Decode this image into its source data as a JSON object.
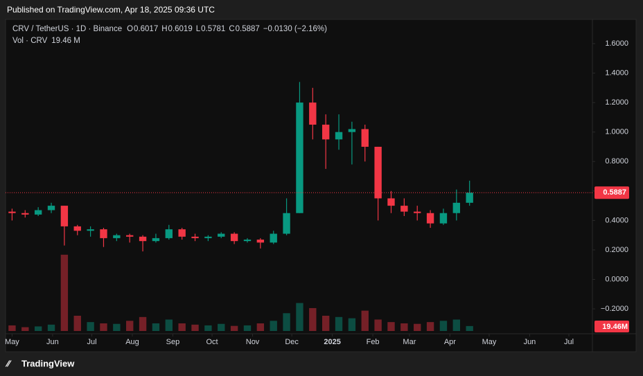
{
  "chart_data": {
    "type": "candlestick",
    "published": "Published on TradingView.com, Apr 18, 2025 09:36 UTC",
    "title": "CRV / TetherUS · 1D · Binance",
    "legend": {
      "open_label": "O",
      "open": 0.6017,
      "high_label": "H",
      "high": 0.6019,
      "low_label": "L",
      "low": 0.5781,
      "close_label": "C",
      "close": 0.5887,
      "change": "−0.0130 (−2.16%)"
    },
    "brand": "TradingView",
    "up_color": "#089981",
    "down_color": "#f23645",
    "x": [
      0,
      10,
      20,
      30,
      40,
      50,
      60,
      70,
      80,
      90,
      100,
      110,
      120,
      130,
      140,
      150,
      160,
      170,
      180,
      190,
      200,
      210,
      220,
      230,
      240,
      250,
      260,
      270,
      280,
      290,
      300,
      310,
      320,
      330,
      340,
      350
    ],
    "open": [
      0.46,
      0.45,
      0.44,
      0.47,
      0.5,
      0.36,
      0.33,
      0.34,
      0.28,
      0.3,
      0.29,
      0.26,
      0.28,
      0.34,
      0.29,
      0.28,
      0.29,
      0.31,
      0.26,
      0.27,
      0.25,
      0.31,
      0.45,
      1.2,
      1.05,
      0.95,
      1.0,
      1.02,
      0.9,
      0.55,
      0.5,
      0.46,
      0.45,
      0.38,
      0.45,
      0.52
    ],
    "high": [
      0.48,
      0.47,
      0.49,
      0.52,
      0.5,
      0.37,
      0.36,
      0.35,
      0.31,
      0.31,
      0.3,
      0.31,
      0.37,
      0.35,
      0.31,
      0.3,
      0.32,
      0.32,
      0.28,
      0.28,
      0.33,
      0.55,
      1.34,
      1.3,
      1.12,
      1.12,
      1.07,
      1.05,
      0.9,
      0.6,
      0.55,
      0.5,
      0.47,
      0.48,
      0.61,
      0.67
    ],
    "low": [
      0.4,
      0.42,
      0.43,
      0.45,
      0.23,
      0.3,
      0.29,
      0.22,
      0.26,
      0.25,
      0.19,
      0.25,
      0.27,
      0.27,
      0.26,
      0.26,
      0.28,
      0.24,
      0.25,
      0.21,
      0.24,
      0.3,
      0.45,
      0.95,
      0.75,
      0.88,
      0.78,
      0.8,
      0.4,
      0.45,
      0.43,
      0.4,
      0.35,
      0.37,
      0.4,
      0.5
    ],
    "close": [
      0.45,
      0.44,
      0.47,
      0.5,
      0.36,
      0.33,
      0.34,
      0.28,
      0.3,
      0.29,
      0.26,
      0.28,
      0.34,
      0.29,
      0.28,
      0.29,
      0.31,
      0.26,
      0.27,
      0.25,
      0.31,
      0.45,
      1.2,
      1.05,
      0.95,
      1.0,
      1.02,
      0.9,
      0.55,
      0.5,
      0.46,
      0.45,
      0.38,
      0.45,
      0.52,
      0.5887
    ],
    "volume": {
      "name": "Vol · CRV",
      "label": "19.46 M",
      "badge": "19.46M",
      "ylim": [
        0,
        1220
      ],
      "values": [
        22,
        15,
        18,
        25,
        300,
        60,
        35,
        30,
        28,
        40,
        55,
        30,
        45,
        30,
        25,
        22,
        28,
        20,
        22,
        30,
        40,
        70,
        110,
        90,
        60,
        55,
        50,
        80,
        45,
        35,
        30,
        28,
        35,
        40,
        45,
        19.46
      ]
    },
    "last_price": 0.5887,
    "xlim": [
      -5,
      444
    ],
    "xticks": [
      {
        "value": 0,
        "label": "May"
      },
      {
        "value": 31,
        "label": "Jun"
      },
      {
        "value": 61,
        "label": "Jul"
      },
      {
        "value": 92,
        "label": "Aug"
      },
      {
        "value": 123,
        "label": "Sep"
      },
      {
        "value": 153,
        "label": "Oct"
      },
      {
        "value": 184,
        "label": "Nov"
      },
      {
        "value": 214,
        "label": "Dec"
      },
      {
        "value": 245,
        "label": "2025"
      },
      {
        "value": 276,
        "label": "Feb"
      },
      {
        "value": 304,
        "label": "Mar"
      },
      {
        "value": 335,
        "label": "Apr"
      },
      {
        "value": 365,
        "label": "May"
      },
      {
        "value": 396,
        "label": "Jun"
      },
      {
        "value": 426,
        "label": "Jul"
      }
    ],
    "ylim": [
      -0.35,
      1.755
    ],
    "yticks": [
      {
        "value": -0.2,
        "label": "−0.2000"
      },
      {
        "value": 0,
        "label": "0.0000"
      },
      {
        "value": 0.2,
        "label": "0.2000"
      },
      {
        "value": 0.4,
        "label": "0.4000"
      },
      {
        "value": 0.6,
        "label": "0.6000"
      },
      {
        "value": 0.8,
        "label": "0.8000"
      },
      {
        "value": 1.0,
        "label": "1.0000"
      },
      {
        "value": 1.2,
        "label": "1.2000"
      },
      {
        "value": 1.4,
        "label": "1.4000"
      },
      {
        "value": 1.6,
        "label": "1.6000"
      }
    ]
  }
}
